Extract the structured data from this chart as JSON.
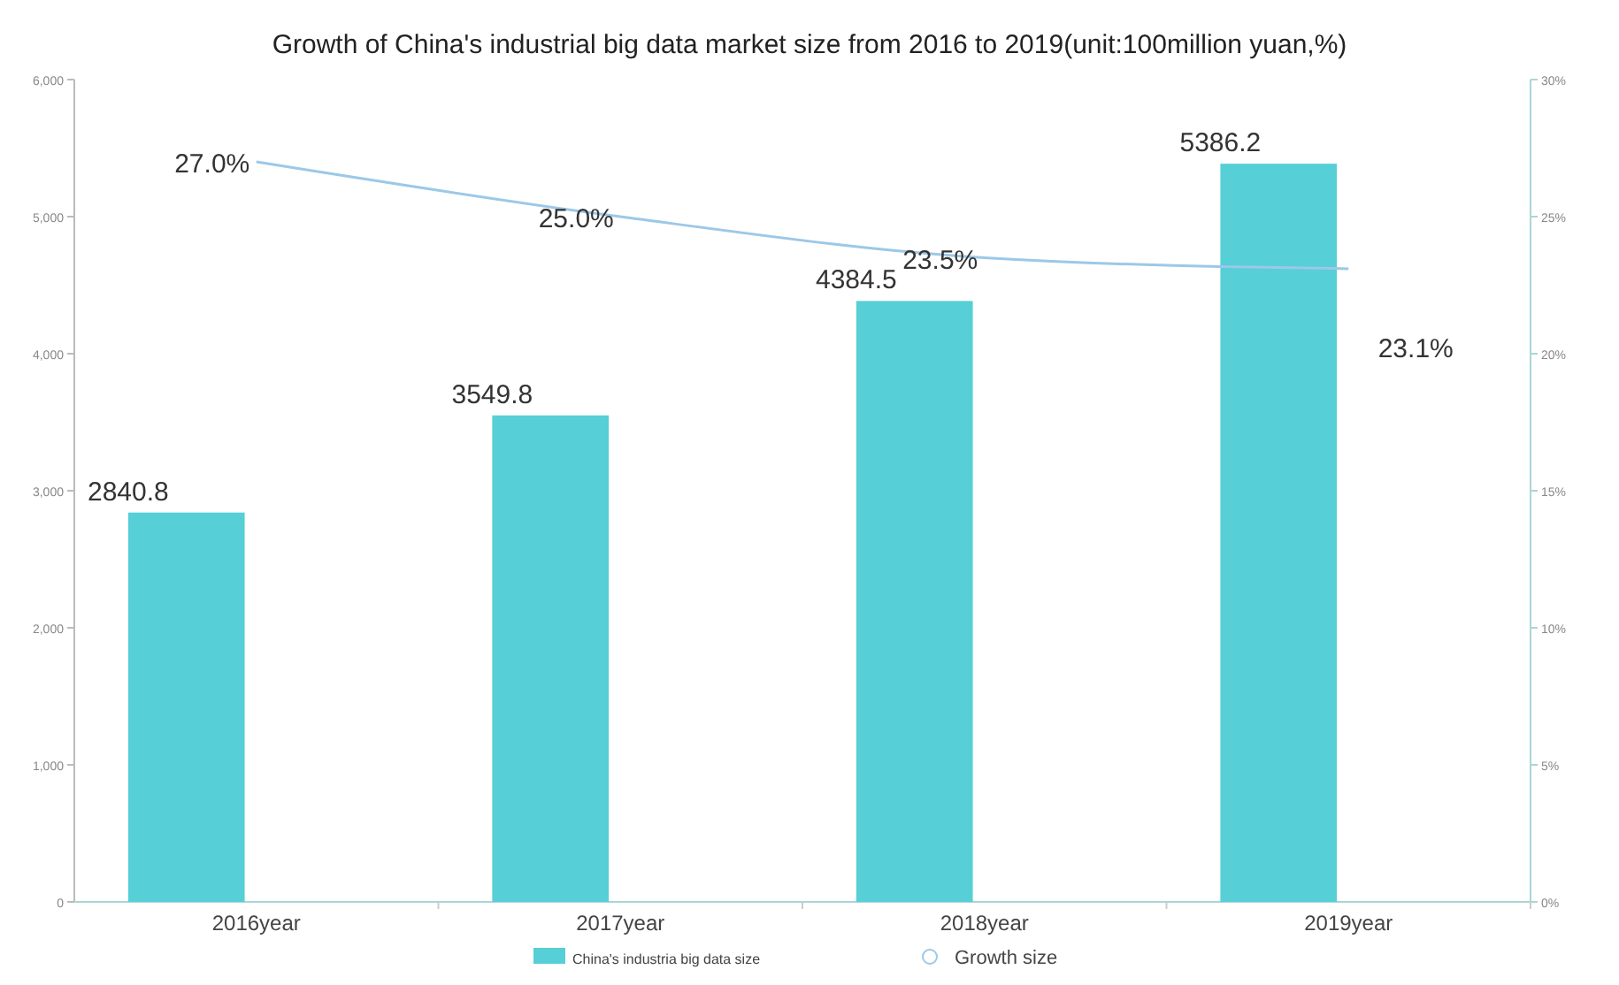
{
  "chart_data": {
    "type": "bar",
    "title": "Growth of China's industrial big data market size from 2016 to 2019(unit:100million yuan,%)",
    "categories": [
      "2016year",
      "2017year",
      "2018year",
      "2019year"
    ],
    "series": [
      {
        "name": "China's industria big data size",
        "color": "#56cfd6",
        "values": [
          2840.8,
          3549.8,
          4384.5,
          5386.2
        ]
      },
      {
        "name": "Growth size",
        "type": "line",
        "axis": "y2",
        "color": "#9cc8e8",
        "values": [
          27.0,
          25.0,
          23.5,
          23.1
        ],
        "value_labels": [
          "27.0%",
          "25.0%",
          "23.5%",
          "23.1%"
        ]
      }
    ],
    "ylim": [
      0,
      6000
    ],
    "yticks": [
      {
        "value": 0,
        "label": "0"
      },
      {
        "value": 1000,
        "label": "1,000"
      },
      {
        "value": 2000,
        "label": "2,000"
      },
      {
        "value": 3000,
        "label": "3,000"
      },
      {
        "value": 4000,
        "label": "4,000"
      },
      {
        "value": 5000,
        "label": "5,000"
      },
      {
        "value": 6000,
        "label": "6,000"
      }
    ],
    "y2lim": [
      0,
      30
    ],
    "y2ticks": [
      {
        "value": 0,
        "label": "0%"
      },
      {
        "value": 5,
        "label": "5%"
      },
      {
        "value": 10,
        "label": "10%"
      },
      {
        "value": 15,
        "label": "15%"
      },
      {
        "value": 20,
        "label": "20%"
      },
      {
        "value": 25,
        "label": "25%"
      },
      {
        "value": 30,
        "label": "30%"
      }
    ],
    "data_labels": true,
    "legend": "bottom",
    "grid": false,
    "marker": "none",
    "line_style": "solid"
  }
}
